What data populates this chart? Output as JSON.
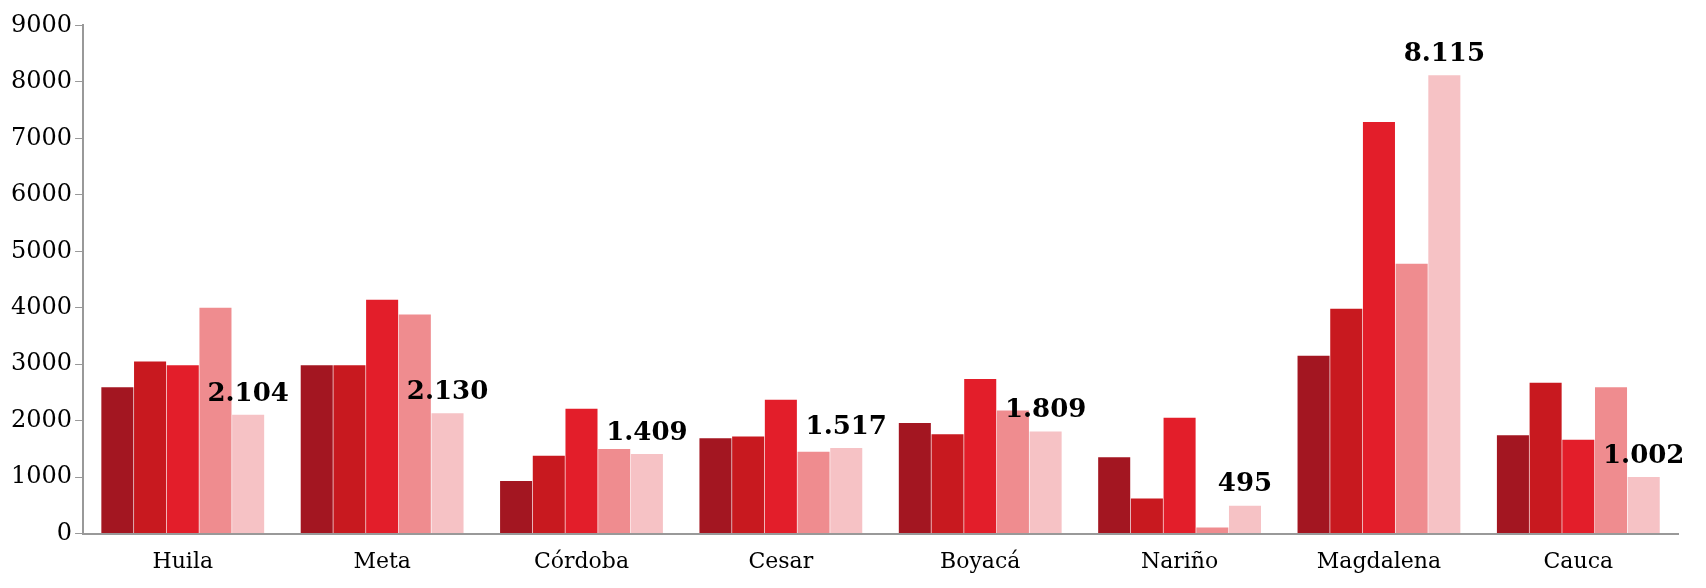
{
  "chart_data": {
    "type": "bar",
    "categories": [
      "Huila",
      "Meta",
      "Córdoba",
      "Cesar",
      "Boyacá",
      "Nariño",
      "Magdalena",
      "Cauca"
    ],
    "ylim": [
      0,
      9000
    ],
    "yticks": [
      0,
      1000,
      2000,
      3000,
      4000,
      5000,
      6000,
      7000,
      8000,
      9000
    ],
    "grid": false,
    "legend": false,
    "series": [
      {
        "color": "#a31621",
        "values": [
          2590,
          2980,
          930,
          1690,
          1960,
          1350,
          3150,
          1740
        ]
      },
      {
        "color": "#c8191f",
        "values": [
          3050,
          2980,
          1380,
          1720,
          1760,
          620,
          3980,
          2670
        ]
      },
      {
        "color": "#e31e2a",
        "values": [
          2980,
          4140,
          2210,
          2370,
          2740,
          2050,
          7290,
          1660
        ]
      },
      {
        "color": "#ef8c8f",
        "values": [
          4000,
          3880,
          1500,
          1450,
          2180,
          110,
          4780,
          2590
        ]
      },
      {
        "color": "#f6c2c5",
        "values": [
          2104,
          2130,
          1409,
          1517,
          1809,
          495,
          8115,
          1002
        ],
        "value_labels": [
          "2.104",
          "2.130",
          "1.409",
          "1.517",
          "1.809",
          "495",
          "8.115",
          "1.002"
        ]
      }
    ]
  }
}
